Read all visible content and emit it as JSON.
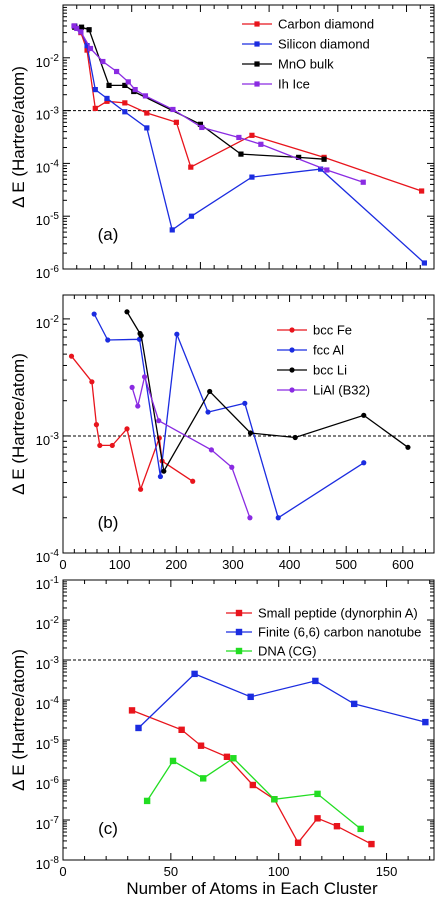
{
  "xlabel": "Number of Atoms in Each Cluster",
  "chart_data": [
    {
      "type": "line",
      "panel_label": "(a)",
      "ylabel": "Δ E (Hartree/atom)",
      "xlim": [
        0,
        540
      ],
      "ylim": [
        1e-06,
        0.1
      ],
      "yscale": "log",
      "x_ticks": [
        0,
        100,
        200,
        300,
        400,
        500
      ],
      "x_tick_labels": [
        "",
        "",
        "",
        "",
        "",
        ""
      ],
      "y_ticks": [
        1e-06,
        1e-05,
        0.0001,
        0.001,
        0.01
      ],
      "y_tick_labels": [
        "10^-6",
        "10^-5",
        "10^-4",
        "10^-3",
        "10^-2"
      ],
      "reference_line": 0.001,
      "legend_position": "top-right",
      "series": [
        {
          "name": "Carbon diamond",
          "color": "#e8141c",
          "x": [
            17,
            26,
            35,
            47,
            64,
            90,
            122,
            165,
            186,
            275,
            380,
            522
          ],
          "y": [
            0.04,
            0.03,
            0.014,
            0.0011,
            0.0015,
            0.0014,
            0.0009,
            0.0006,
            8.5e-05,
            0.00034,
            0.00013,
            3e-05
          ]
        },
        {
          "name": "Silicon diamond",
          "color": "#1b2ce0",
          "x": [
            17,
            25,
            35,
            47,
            64,
            90,
            122,
            159,
            187,
            275,
            375,
            526
          ],
          "y": [
            0.04,
            0.035,
            0.017,
            0.0025,
            0.0017,
            0.00095,
            0.00047,
            5.5e-06,
            1e-05,
            5.5e-05,
            7.8e-05,
            1.3e-06
          ]
        },
        {
          "name": "MnO bulk",
          "color": "#000000",
          "x": [
            17,
            27,
            38,
            67,
            90,
            103,
            200,
            259,
            343,
            380
          ],
          "y": [
            0.038,
            0.038,
            0.034,
            0.003,
            0.003,
            0.0023,
            0.00055,
            0.00015,
            0.00013,
            0.00012
          ]
        },
        {
          "name": "Ih Ice",
          "color": "#8a2be2",
          "x": [
            16,
            20,
            26,
            40,
            58,
            78,
            95,
            105,
            120,
            160,
            202,
            256,
            288,
            384,
            437
          ],
          "y": [
            0.04,
            0.036,
            0.031,
            0.015,
            0.0085,
            0.0055,
            0.0035,
            0.0025,
            0.0019,
            0.00105,
            0.00048,
            0.00031,
            0.00023,
            7.5e-05,
            4.4e-05
          ]
        }
      ]
    },
    {
      "type": "line",
      "panel_label": "(b)",
      "ylabel": "Δ E (Hartree/atom)",
      "xlim": [
        0,
        655
      ],
      "ylim": [
        0.0001,
        0.016
      ],
      "yscale": "log",
      "x_ticks": [
        0,
        100,
        200,
        300,
        400,
        500,
        600
      ],
      "x_tick_labels": [
        "0",
        "100",
        "200",
        "300",
        "400",
        "500",
        "600"
      ],
      "y_ticks": [
        0.0001,
        0.001,
        0.01
      ],
      "y_tick_labels": [
        "10^-4",
        "10^-3",
        "10^-2"
      ],
      "reference_line": 0.001,
      "legend_position": "top-right",
      "series": [
        {
          "name": "bcc Fe",
          "color": "#e8141c",
          "x": [
            15,
            51,
            59,
            65,
            87,
            113,
            137,
            170,
            175,
            229
          ],
          "y": [
            0.0048,
            0.0029,
            0.00125,
            0.00083,
            0.00083,
            0.00115,
            0.00035,
            0.00096,
            0.00061,
            0.00041
          ]
        },
        {
          "name": "fcc Al",
          "color": "#1b2ce0",
          "x": [
            55,
            79,
            135,
            172,
            201,
            256,
            321,
            380,
            531
          ],
          "y": [
            0.011,
            0.0066,
            0.0067,
            0.00045,
            0.0074,
            0.0016,
            0.0019,
            0.0002,
            0.00059
          ]
        },
        {
          "name": "bcc Li",
          "color": "#000000",
          "x": [
            113,
            136,
            138,
            178,
            259,
            331,
            410,
            531,
            609
          ],
          "y": [
            0.0115,
            0.0075,
            0.0072,
            0.0005,
            0.0024,
            0.00106,
            0.00097,
            0.0015,
            0.0008
          ]
        },
        {
          "name": "LiAl (B32)",
          "color": "#8a2be2",
          "x": [
            122,
            132,
            144,
            169,
            262,
            298,
            330
          ],
          "y": [
            0.0026,
            0.0018,
            0.0032,
            0.00135,
            0.00076,
            0.00054,
            0.0002
          ]
        }
      ]
    },
    {
      "type": "line",
      "panel_label": "(c)",
      "ylabel": "Δ E (Hartree/atom)",
      "xlim": [
        0,
        172
      ],
      "ylim": [
        1e-08,
        0.1
      ],
      "yscale": "log",
      "x_ticks": [
        0,
        50,
        100,
        150
      ],
      "x_tick_labels": [
        "0",
        "50",
        "100",
        "150"
      ],
      "y_ticks": [
        1e-08,
        1e-07,
        1e-06,
        1e-05,
        0.0001,
        0.001,
        0.01,
        0.1
      ],
      "y_tick_labels": [
        "10^-8",
        "10^-7",
        "10^-6",
        "10^-5",
        "10^-4",
        "10^-3",
        "10^-2",
        "10^-1"
      ],
      "reference_line": 0.001,
      "legend_position": "top-right",
      "series": [
        {
          "name": "Small peptide (dynorphin A)",
          "color": "#e8141c",
          "x": [
            32,
            55,
            64,
            76,
            88,
            98,
            109,
            118,
            127,
            143
          ],
          "y": [
            5.5e-05,
            1.8e-05,
            7.2e-06,
            3.8e-06,
            7.5e-07,
            3.3e-07,
            2.7e-08,
            1.1e-07,
            7e-08,
            2.5e-08
          ]
        },
        {
          "name": "Finite (6,6) carbon nanotube",
          "color": "#1b2ce0",
          "x": [
            35,
            61,
            87,
            117,
            135,
            168
          ],
          "y": [
            2e-05,
            0.00045,
            0.00012,
            0.0003,
            8e-05,
            2.8e-05
          ]
        },
        {
          "name": "DNA (CG)",
          "color": "#22dd22",
          "x": [
            39,
            51,
            65,
            79,
            98,
            118,
            138
          ],
          "y": [
            3e-07,
            3e-06,
            1.1e-06,
            3.5e-06,
            3.3e-07,
            4.5e-07,
            6e-08
          ]
        }
      ]
    }
  ]
}
